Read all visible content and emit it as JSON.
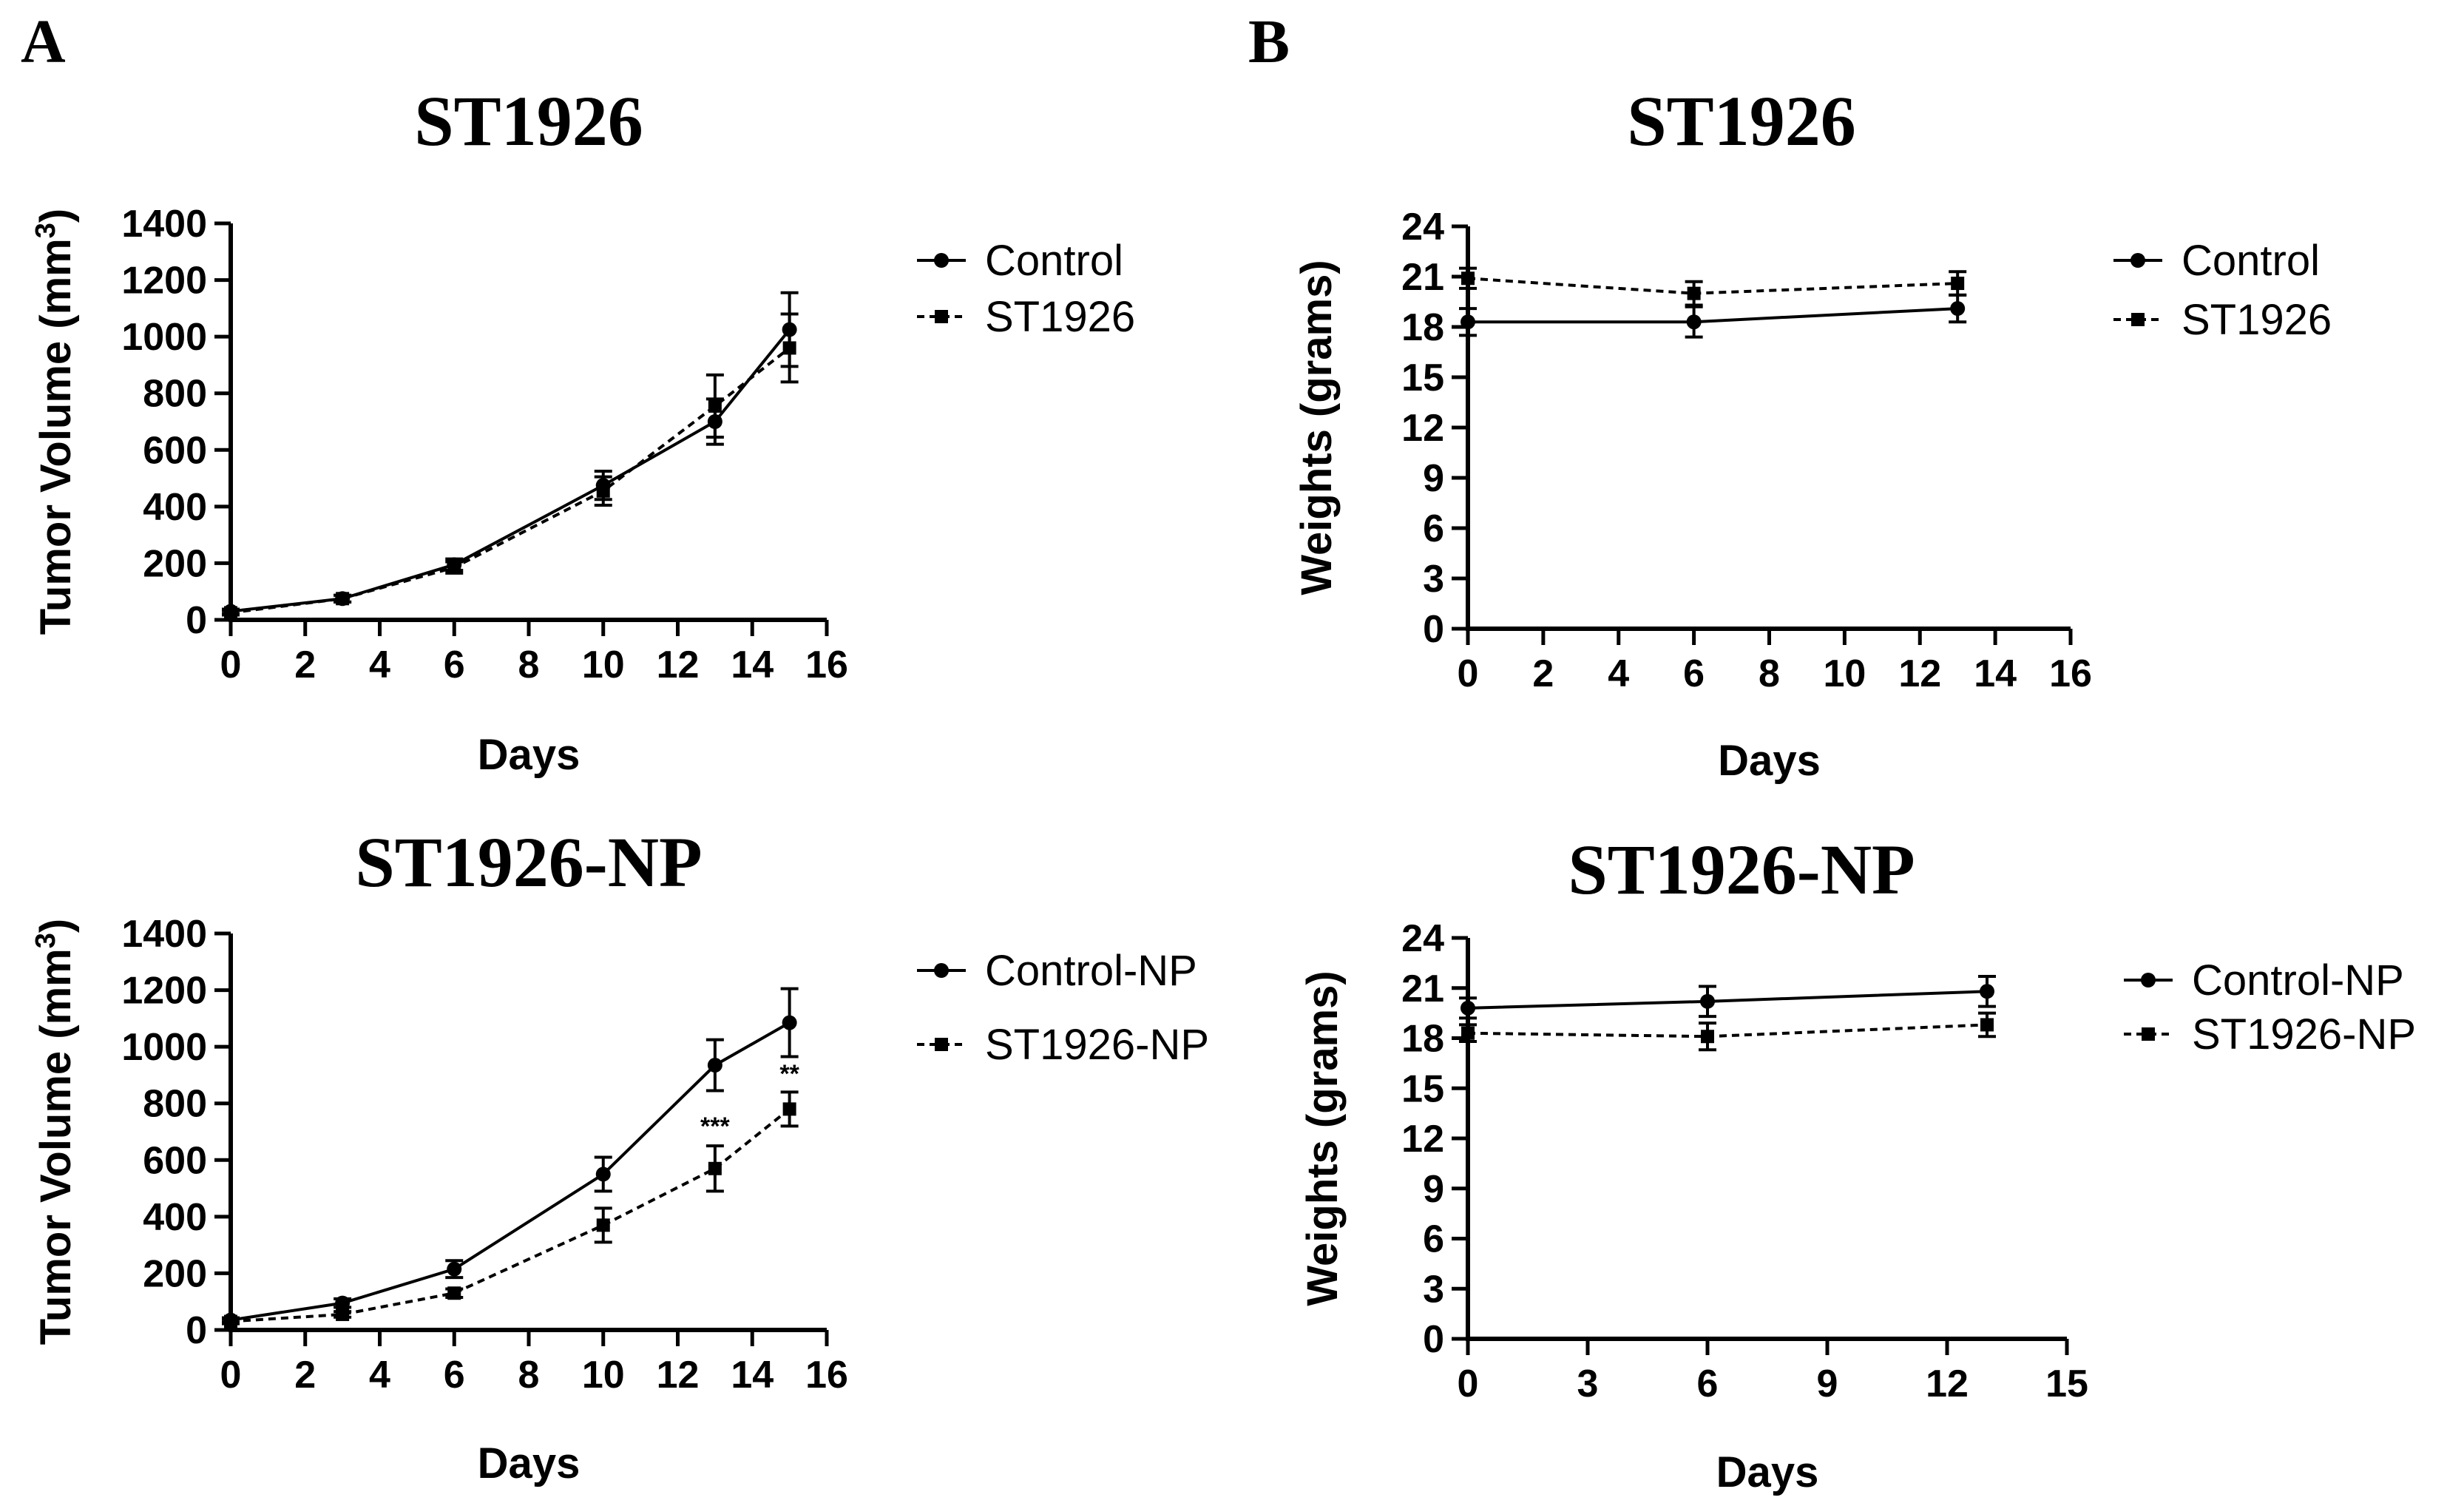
{
  "panels": [
    {
      "letter": "A"
    },
    {
      "letter": "B"
    }
  ],
  "chart_data": [
    {
      "id": "chartA1",
      "panel": "A",
      "type": "line",
      "title": "ST1926",
      "xlabel": "Days",
      "ylabel": "Tumor Volume (mm",
      "ylabel_sup": "3",
      "ylabel_close": ")",
      "xlim": [
        0,
        16
      ],
      "ylim": [
        0,
        1400
      ],
      "xticks": [
        0,
        2,
        4,
        6,
        8,
        10,
        12,
        14,
        16
      ],
      "yticks": [
        0,
        200,
        400,
        600,
        800,
        1000,
        1200,
        1400
      ],
      "legend_position": "right",
      "series": [
        {
          "name": "Control",
          "marker": "circle",
          "line": "solid",
          "x": [
            0,
            3,
            6,
            10,
            13,
            15
          ],
          "y": [
            30,
            75,
            195,
            475,
            700,
            1025
          ],
          "err": [
            8,
            12,
            20,
            50,
            80,
            130
          ]
        },
        {
          "name": "ST1926",
          "marker": "square",
          "line": "dashed",
          "x": [
            0,
            3,
            6,
            10,
            13,
            15
          ],
          "y": [
            25,
            75,
            185,
            455,
            755,
            960
          ],
          "err": [
            8,
            12,
            20,
            50,
            110,
            120
          ]
        }
      ],
      "annotations": []
    },
    {
      "id": "chartA2",
      "panel": "A",
      "type": "line",
      "title": "ST1926-NP",
      "xlabel": "Days",
      "ylabel": "Tumor Volume (mm",
      "ylabel_sup": "3",
      "ylabel_close": ")",
      "xlim": [
        0,
        16
      ],
      "ylim": [
        0,
        1400
      ],
      "xticks": [
        0,
        2,
        4,
        6,
        8,
        10,
        12,
        14,
        16
      ],
      "yticks": [
        0,
        200,
        400,
        600,
        800,
        1000,
        1200,
        1400
      ],
      "legend_position": "right",
      "series": [
        {
          "name": "Control-NP",
          "marker": "circle",
          "line": "solid",
          "x": [
            0,
            3,
            6,
            10,
            13,
            15
          ],
          "y": [
            35,
            95,
            215,
            550,
            935,
            1085
          ],
          "err": [
            8,
            15,
            30,
            60,
            90,
            120
          ]
        },
        {
          "name": "ST1926-NP",
          "marker": "square",
          "line": "dashed",
          "x": [
            0,
            3,
            6,
            10,
            13,
            15
          ],
          "y": [
            30,
            55,
            130,
            370,
            570,
            780
          ],
          "err": [
            8,
            10,
            15,
            60,
            80,
            60
          ]
        }
      ],
      "annotations": [
        {
          "x": 13,
          "y": 690,
          "text": "***"
        },
        {
          "x": 15,
          "y": 875,
          "text": "**"
        }
      ]
    },
    {
      "id": "chartB1",
      "panel": "B",
      "type": "line",
      "title": "ST1926",
      "xlabel": "Days",
      "ylabel": "Weights (grams)",
      "ylabel_sup": "",
      "ylabel_close": "",
      "xlim": [
        0,
        16
      ],
      "ylim": [
        0,
        24
      ],
      "xticks": [
        0,
        2,
        4,
        6,
        8,
        10,
        12,
        14,
        16
      ],
      "yticks": [
        0,
        3,
        6,
        9,
        12,
        15,
        18,
        21,
        24
      ],
      "legend_position": "right",
      "series": [
        {
          "name": "Control",
          "marker": "circle",
          "line": "solid",
          "x": [
            0,
            6,
            13
          ],
          "y": [
            18.3,
            18.3,
            19.1
          ],
          "err": [
            0.8,
            0.9,
            0.8
          ]
        },
        {
          "name": "ST1926",
          "marker": "square",
          "line": "dashed",
          "x": [
            0,
            6,
            13
          ],
          "y": [
            20.9,
            20.0,
            20.6
          ],
          "err": [
            0.6,
            0.7,
            0.7
          ]
        }
      ],
      "annotations": []
    },
    {
      "id": "chartB2",
      "panel": "B",
      "type": "line",
      "title": "ST1926-NP",
      "xlabel": "Days",
      "ylabel": "Weights (grams)",
      "ylabel_sup": "",
      "ylabel_close": "",
      "xlim": [
        0,
        15
      ],
      "ylim": [
        0,
        24
      ],
      "xticks": [
        0,
        3,
        6,
        9,
        12,
        15
      ],
      "yticks": [
        0,
        3,
        6,
        9,
        12,
        15,
        18,
        21,
        24
      ],
      "legend_position": "right",
      "series": [
        {
          "name": "Control-NP",
          "marker": "circle",
          "line": "solid",
          "x": [
            0,
            6,
            13
          ],
          "y": [
            19.8,
            20.2,
            20.8
          ],
          "err": [
            0.6,
            0.9,
            0.9
          ]
        },
        {
          "name": "ST1926-NP",
          "marker": "square",
          "line": "dashed",
          "x": [
            0,
            6,
            13
          ],
          "y": [
            18.3,
            18.1,
            18.8
          ],
          "err": [
            0.5,
            0.8,
            0.7
          ]
        }
      ],
      "annotations": []
    }
  ]
}
